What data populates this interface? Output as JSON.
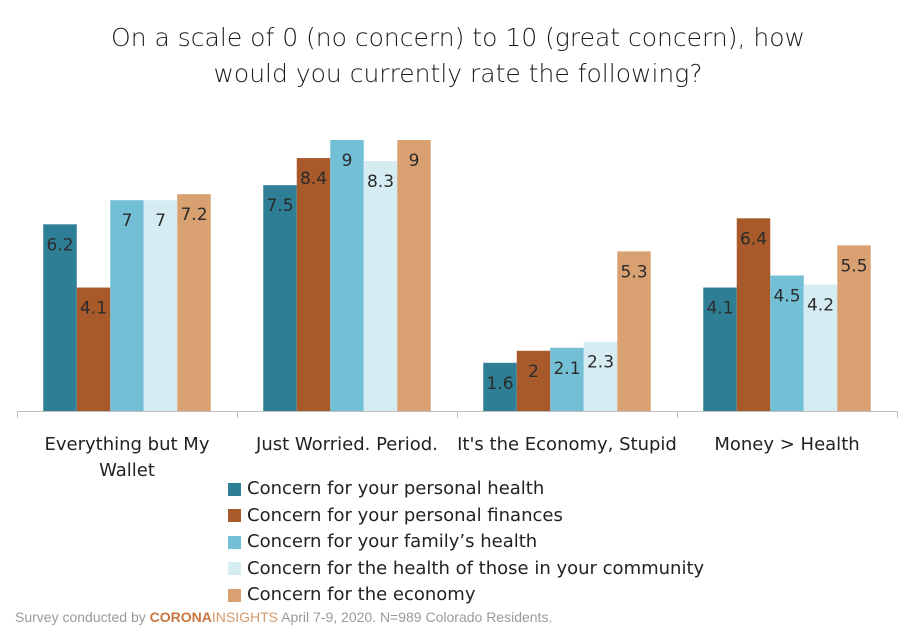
{
  "title_lines": [
    "On a scale of 0 (no concern) to 10 (great concern), how",
    "would you currently rate the following?"
  ],
  "chart_data": {
    "type": "bar",
    "title": "On a scale of 0 (no concern) to 10 (great concern), how would you currently rate the following?",
    "categories": [
      [
        "Everything but My",
        "Wallet"
      ],
      [
        "Just Worried. Period."
      ],
      [
        "It's the Economy, Stupid"
      ],
      [
        "Money > Health"
      ]
    ],
    "series": [
      {
        "name": "Concern for your personal health",
        "color": "#2e7f96",
        "values": [
          6.2,
          7.5,
          1.6,
          4.1
        ]
      },
      {
        "name": "Concern for your personal finances",
        "color": "#a85a2a",
        "values": [
          4.1,
          8.4,
          2,
          6.4
        ]
      },
      {
        "name": "Concern for your family’s health",
        "color": "#72bfd6",
        "values": [
          7,
          9,
          2.1,
          4.5
        ]
      },
      {
        "name": "Concern for the health of those in your community",
        "color": "#d6ecf3",
        "values": [
          7,
          8.3,
          2.3,
          4.2
        ]
      },
      {
        "name": "Concern for the economy",
        "color": "#d9a072",
        "values": [
          7.2,
          9,
          5.3,
          5.5
        ]
      }
    ],
    "ylim": [
      0,
      9
    ],
    "grid": false,
    "legend_position": "bottom",
    "xlabel": "",
    "ylabel": ""
  },
  "footer": {
    "prefix": "Survey conducted by ",
    "brand_part1": "CORONA",
    "brand_part2": "INSIGHTS",
    "suffix": " April 7-9, 2020. N=989 Colorado Residents."
  }
}
